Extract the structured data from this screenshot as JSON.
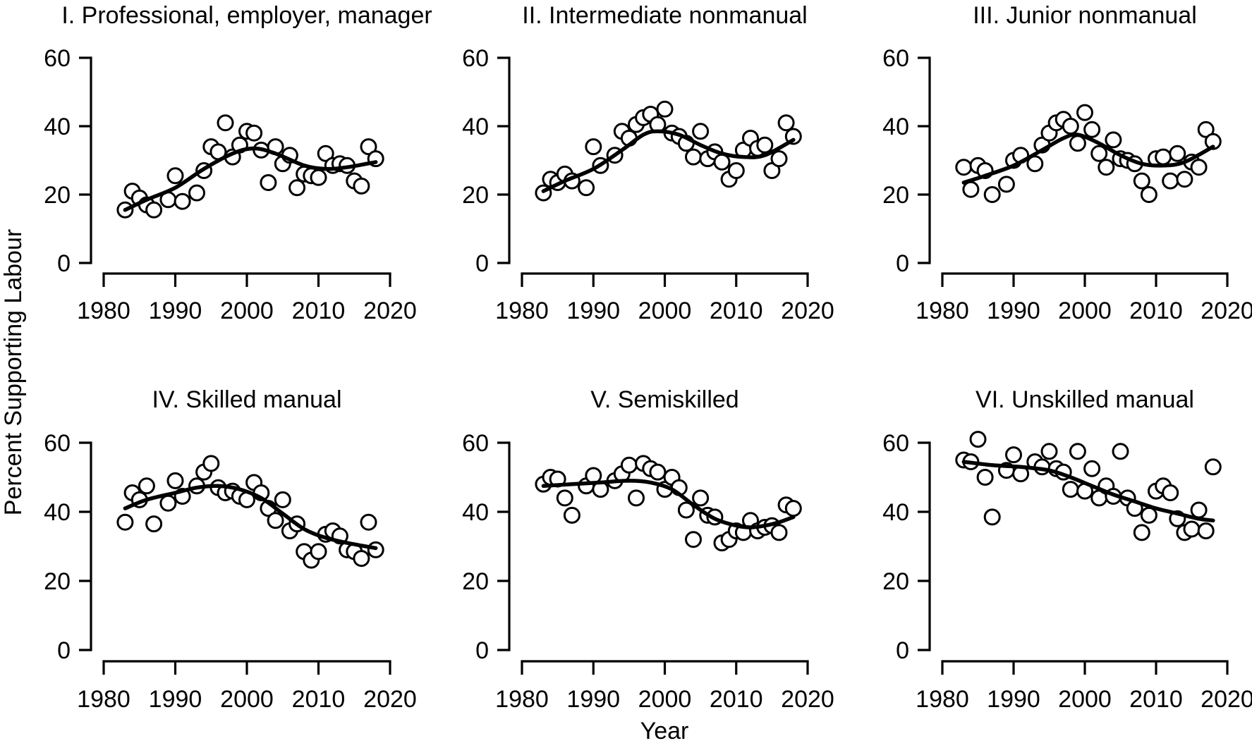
{
  "figure": {
    "ylabel": "Percent Supporting Labour",
    "xlabel": "Year",
    "background": "#ffffff",
    "stroke_color": "#000000",
    "point_fill": "#ffffff"
  },
  "chart_data": [
    {
      "type": "scatter",
      "title": "I. Professional, employer, manager",
      "xlabel": "Year",
      "ylabel": "Percent Supporting Labour",
      "xlim": [
        1980,
        2020
      ],
      "ylim": [
        0,
        60
      ],
      "x_ticks": [
        1980,
        1990,
        2000,
        2010,
        2020
      ],
      "y_ticks": [
        0,
        20,
        40,
        60
      ],
      "x": [
        1983,
        1984,
        1985,
        1986,
        1987,
        1989,
        1990,
        1991,
        1993,
        1994,
        1995,
        1996,
        1997,
        1998,
        1999,
        2000,
        2001,
        2002,
        2003,
        2004,
        2005,
        2006,
        2007,
        2008,
        2009,
        2010,
        2011,
        2012,
        2013,
        2014,
        2015,
        2016,
        2017,
        2018
      ],
      "y": [
        15.5,
        21,
        19,
        17,
        15.5,
        18.5,
        25.5,
        18,
        20.5,
        27,
        34,
        32.5,
        41,
        31,
        34.5,
        38.5,
        38,
        33,
        23.5,
        34,
        29,
        31.5,
        22,
        26,
        25.5,
        25,
        32,
        28.5,
        29,
        28.5,
        24,
        22.5,
        34,
        30.5
      ],
      "smooth": {
        "x": [
          1983,
          1986,
          1990,
          1994,
          1998,
          2001,
          2004,
          2008,
          2011,
          2014,
          2018
        ],
        "y": [
          15.5,
          18.5,
          22,
          27.5,
          32,
          33.5,
          32,
          28.5,
          27.5,
          28,
          29.5
        ]
      }
    },
    {
      "type": "scatter",
      "title": "II. Intermediate nonmanual",
      "xlabel": "Year",
      "ylabel": "Percent Supporting Labour",
      "xlim": [
        1980,
        2020
      ],
      "ylim": [
        0,
        60
      ],
      "x_ticks": [
        1980,
        1990,
        2000,
        2010,
        2020
      ],
      "y_ticks": [
        0,
        20,
        40,
        60
      ],
      "x": [
        1983,
        1984,
        1985,
        1986,
        1987,
        1989,
        1990,
        1991,
        1993,
        1994,
        1995,
        1996,
        1997,
        1998,
        1999,
        2000,
        2001,
        2002,
        2003,
        2004,
        2005,
        2006,
        2007,
        2008,
        2009,
        2010,
        2011,
        2012,
        2013,
        2014,
        2015,
        2016,
        2017,
        2018
      ],
      "y": [
        20.5,
        24.5,
        23.5,
        26,
        24,
        22,
        34,
        28.5,
        31.5,
        38.5,
        36.5,
        40.5,
        42.5,
        43.5,
        40.5,
        45,
        38,
        37,
        35,
        31,
        38.5,
        30.5,
        32.5,
        29.5,
        24.5,
        27,
        33,
        36.5,
        33.5,
        34.5,
        27,
        30.5,
        41,
        37
      ],
      "smooth": {
        "x": [
          1983,
          1986,
          1990,
          1994,
          1997,
          1999,
          2002,
          2005,
          2008,
          2011,
          2014,
          2018
        ],
        "y": [
          21,
          24,
          27.5,
          33,
          37.5,
          38.5,
          37.5,
          34.5,
          32,
          31,
          31.5,
          36
        ]
      }
    },
    {
      "type": "scatter",
      "title": "III. Junior nonmanual",
      "xlabel": "Year",
      "ylabel": "Percent Supporting Labour",
      "xlim": [
        1980,
        2020
      ],
      "ylim": [
        0,
        60
      ],
      "x_ticks": [
        1980,
        1990,
        2000,
        2010,
        2020
      ],
      "y_ticks": [
        0,
        20,
        40,
        60
      ],
      "x": [
        1983,
        1984,
        1985,
        1986,
        1987,
        1989,
        1990,
        1991,
        1993,
        1994,
        1995,
        1996,
        1997,
        1998,
        1999,
        2000,
        2001,
        2002,
        2003,
        2004,
        2005,
        2006,
        2007,
        2008,
        2009,
        2010,
        2011,
        2012,
        2013,
        2014,
        2015,
        2016,
        2017,
        2018
      ],
      "y": [
        28,
        21.5,
        28.5,
        27,
        20,
        23,
        30,
        31.5,
        29,
        34.5,
        38,
        41,
        42,
        40,
        35,
        44,
        39,
        32,
        28,
        36,
        30.5,
        30,
        29,
        24,
        20,
        30.5,
        31,
        24,
        32,
        24.5,
        29.5,
        28,
        39,
        35.5
      ],
      "smooth": {
        "x": [
          1983,
          1986,
          1990,
          1994,
          1997,
          1999,
          2002,
          2005,
          2008,
          2011,
          2014,
          2018
        ],
        "y": [
          23.5,
          25.5,
          28.5,
          33,
          36.5,
          37.5,
          35,
          31.5,
          29,
          28.5,
          29.5,
          34
        ]
      }
    },
    {
      "type": "scatter",
      "title": "IV. Skilled manual",
      "xlabel": "Year",
      "ylabel": "Percent Supporting Labour",
      "xlim": [
        1980,
        2020
      ],
      "ylim": [
        0,
        60
      ],
      "x_ticks": [
        1980,
        1990,
        2000,
        2010,
        2020
      ],
      "y_ticks": [
        0,
        20,
        40,
        60
      ],
      "x": [
        1983,
        1984,
        1985,
        1986,
        1987,
        1989,
        1990,
        1991,
        1993,
        1994,
        1995,
        1996,
        1997,
        1998,
        1999,
        2000,
        2001,
        2002,
        2003,
        2004,
        2005,
        2006,
        2007,
        2008,
        2009,
        2010,
        2011,
        2012,
        2013,
        2014,
        2015,
        2016,
        2017,
        2018
      ],
      "y": [
        37,
        45.5,
        43.5,
        47.5,
        36.5,
        42.5,
        49,
        44.5,
        47.5,
        51.5,
        54,
        47,
        45.5,
        46,
        44.5,
        43.5,
        48.5,
        45.5,
        41,
        37.5,
        43.5,
        34.5,
        36.5,
        28.5,
        26,
        28.5,
        33.5,
        34.5,
        33,
        29,
        28.5,
        26.5,
        37,
        29
      ],
      "smooth": {
        "x": [
          1983,
          1986,
          1990,
          1993,
          1996,
          1999,
          2002,
          2005,
          2008,
          2011,
          2014,
          2018
        ],
        "y": [
          41,
          43.5,
          45.5,
          47,
          47.5,
          46.5,
          44,
          39.5,
          35,
          32.5,
          31,
          29.5
        ]
      }
    },
    {
      "type": "scatter",
      "title": "V. Semiskilled",
      "xlabel": "Year",
      "ylabel": "Percent Supporting Labour",
      "xlim": [
        1980,
        2020
      ],
      "ylim": [
        0,
        60
      ],
      "x_ticks": [
        1980,
        1990,
        2000,
        2010,
        2020
      ],
      "y_ticks": [
        0,
        20,
        40,
        60
      ],
      "x": [
        1983,
        1984,
        1985,
        1986,
        1987,
        1989,
        1990,
        1991,
        1993,
        1994,
        1995,
        1996,
        1997,
        1998,
        1999,
        2000,
        2001,
        2002,
        2003,
        2004,
        2005,
        2006,
        2007,
        2008,
        2009,
        2010,
        2011,
        2012,
        2013,
        2014,
        2015,
        2016,
        2017,
        2018
      ],
      "y": [
        48,
        50,
        49.5,
        44,
        39,
        47.5,
        50.5,
        46.5,
        49,
        51,
        53.5,
        44,
        54,
        52.5,
        51.5,
        46.5,
        50,
        47,
        40.5,
        32,
        44,
        39,
        38.5,
        31,
        32,
        34.5,
        34,
        37.5,
        34.5,
        35.5,
        36,
        34,
        42,
        41
      ],
      "smooth": {
        "x": [
          1983,
          1987,
          1991,
          1995,
          1998,
          2001,
          2004,
          2007,
          2010,
          2012,
          2014,
          2016,
          2018
        ],
        "y": [
          47.5,
          48,
          48.5,
          49,
          48.5,
          46.5,
          42,
          38,
          36,
          35.5,
          36,
          37,
          38.5
        ]
      }
    },
    {
      "type": "scatter",
      "title": "VI. Unskilled manual",
      "xlabel": "Year",
      "ylabel": "Percent Supporting Labour",
      "xlim": [
        1980,
        2020
      ],
      "ylim": [
        0,
        60
      ],
      "x_ticks": [
        1980,
        1990,
        2000,
        2010,
        2020
      ],
      "y_ticks": [
        0,
        20,
        40,
        60
      ],
      "x": [
        1983,
        1984,
        1985,
        1986,
        1987,
        1989,
        1990,
        1991,
        1993,
        1994,
        1995,
        1996,
        1997,
        1998,
        1999,
        2000,
        2001,
        2002,
        2003,
        2004,
        2005,
        2006,
        2007,
        2008,
        2009,
        2010,
        2011,
        2012,
        2013,
        2014,
        2015,
        2016,
        2017,
        2018
      ],
      "y": [
        55,
        54.5,
        61,
        50,
        38.5,
        52,
        56.5,
        51,
        54.5,
        53,
        57.5,
        52.5,
        51.5,
        46.5,
        57.5,
        46,
        52.5,
        44,
        47.5,
        44.5,
        57.5,
        44,
        41,
        34,
        39,
        46,
        47.5,
        45.5,
        38,
        34,
        35,
        40.5,
        34.5,
        53
      ],
      "smooth": {
        "x": [
          1983,
          1987,
          1991,
          1995,
          1998,
          2001,
          2004,
          2007,
          2010,
          2013,
          2016,
          2018
        ],
        "y": [
          54.5,
          53.5,
          53,
          52,
          50,
          47.5,
          45,
          43,
          41,
          39.5,
          38,
          37.5
        ]
      }
    }
  ]
}
